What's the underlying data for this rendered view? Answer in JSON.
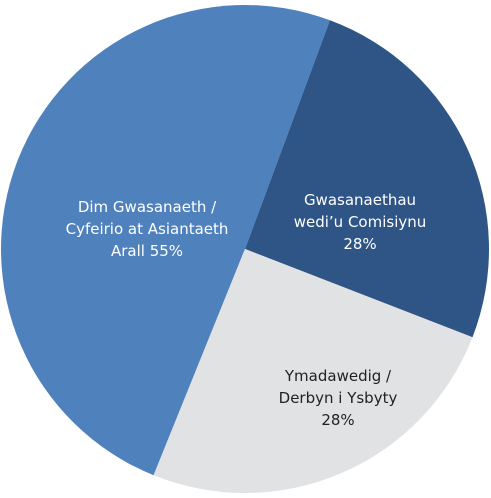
{
  "chart_data": {
    "type": "pie",
    "categories": [
      "Dim Gwasanaeth / Cyfeirio at Asiantaeth Arall",
      "Gwasanaethau wedi’u Comisiynu",
      "Ymadawedig / Derbyn i Ysbyty"
    ],
    "values": [
      55,
      28,
      28
    ],
    "value_labels": [
      "55%",
      "28%",
      "28%"
    ],
    "colors": [
      "#4f81bd",
      "#2e5586",
      "#e1e2e3"
    ]
  }
}
